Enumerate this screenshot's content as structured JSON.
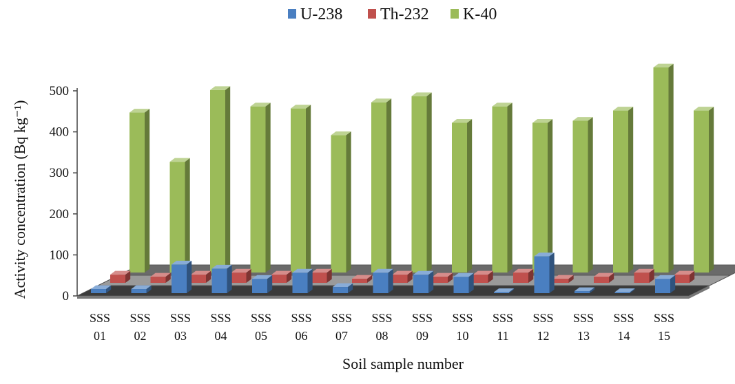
{
  "chart_data": {
    "type": "bar",
    "title": "",
    "xlabel": "Soil sample number",
    "ylabel": "Activity concentration (Bq kg⁻¹)",
    "ylim": [
      0,
      500
    ],
    "yticks": [
      "0",
      "100",
      "200",
      "300",
      "400",
      "500"
    ],
    "categories": [
      [
        "SSS",
        "01"
      ],
      [
        "SSS",
        "02"
      ],
      [
        "SSS",
        "03"
      ],
      [
        "SSS",
        "04"
      ],
      [
        "SSS",
        "05"
      ],
      [
        "SSS",
        "06"
      ],
      [
        "SSS",
        "07"
      ],
      [
        "SSS",
        "08"
      ],
      [
        "SSS",
        "09"
      ],
      [
        "SSS",
        "10"
      ],
      [
        "SSS",
        "11"
      ],
      [
        "SSS",
        "12"
      ],
      [
        "SSS",
        "13"
      ],
      [
        "SSS",
        "14"
      ],
      [
        "SSS",
        "15"
      ]
    ],
    "series": [
      {
        "name": "U-238",
        "color": "#4a7fc1",
        "values": [
          10,
          10,
          70,
          60,
          35,
          50,
          15,
          50,
          45,
          40,
          2,
          90,
          5,
          2,
          35
        ]
      },
      {
        "name": "Th-232",
        "color": "#c0504d",
        "values": [
          20,
          15,
          20,
          25,
          20,
          25,
          10,
          20,
          15,
          20,
          25,
          10,
          15,
          25,
          20
        ]
      },
      {
        "name": "K-40",
        "color": "#9bbb59",
        "values": [
          390,
          270,
          445,
          405,
          400,
          335,
          415,
          430,
          365,
          405,
          365,
          370,
          395,
          500,
          395
        ]
      }
    ],
    "legend_position": "top-center",
    "grid": false,
    "projection": "3d"
  }
}
